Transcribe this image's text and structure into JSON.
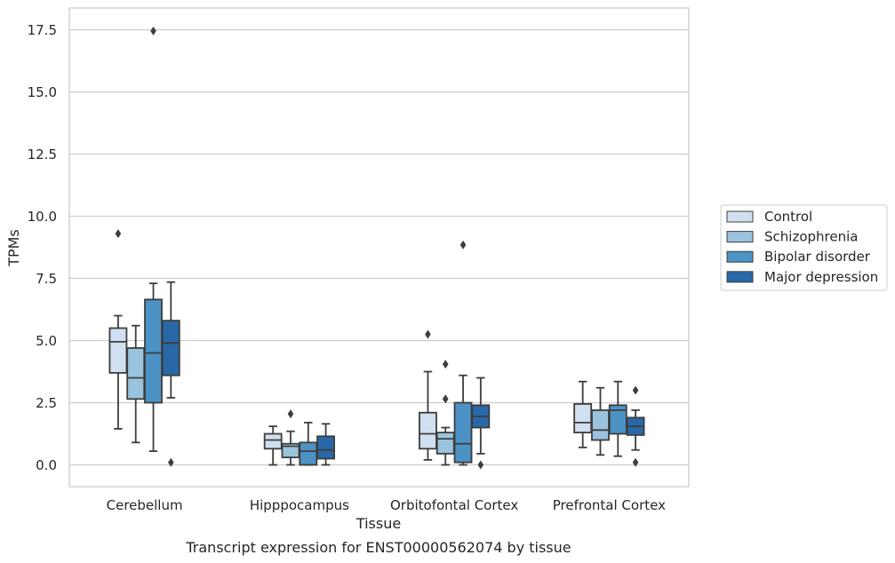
{
  "chart_data": {
    "type": "box",
    "title": "",
    "caption": "Transcript expression for ENST00000562074 by tissue",
    "xlabel": "Tissue",
    "ylabel": "TPMs",
    "ylim": [
      -0.85,
      18.4
    ],
    "yticks": [
      "0.0",
      "2.5",
      "5.0",
      "7.5",
      "10.0",
      "12.5",
      "15.0",
      "17.5"
    ],
    "categories": [
      "Cerebellum",
      "Hipppocampus",
      "Orbitofontal Cortex",
      "Prefrontal Cortex"
    ],
    "grid": "horizontal",
    "legend_position": "right",
    "series": [
      {
        "name": "Control",
        "color": "#d1e0f0",
        "boxes": [
          {
            "whislo": 1.45,
            "q1": 3.7,
            "med": 4.95,
            "q3": 5.5,
            "whishi": 6.0,
            "fliers": [
              9.3
            ]
          },
          {
            "whislo": 0.0,
            "q1": 0.65,
            "med": 1.0,
            "q3": 1.25,
            "whishi": 1.55,
            "fliers": []
          },
          {
            "whislo": 0.2,
            "q1": 0.65,
            "med": 1.25,
            "q3": 2.1,
            "whishi": 3.75,
            "fliers": [
              5.25
            ]
          },
          {
            "whislo": 0.7,
            "q1": 1.3,
            "med": 1.7,
            "q3": 2.45,
            "whishi": 3.35,
            "fliers": []
          }
        ]
      },
      {
        "name": "Schizophrenia",
        "color": "#9cc3de",
        "boxes": [
          {
            "whislo": 0.9,
            "q1": 2.65,
            "med": 3.5,
            "q3": 4.7,
            "whishi": 5.6,
            "fliers": []
          },
          {
            "whislo": 0.0,
            "q1": 0.3,
            "med": 0.75,
            "q3": 0.85,
            "whishi": 1.35,
            "fliers": [
              2.05
            ]
          },
          {
            "whislo": 0.0,
            "q1": 0.45,
            "med": 1.05,
            "q3": 1.3,
            "whishi": 1.5,
            "fliers": [
              4.05,
              2.65
            ]
          },
          {
            "whislo": 0.4,
            "q1": 1.0,
            "med": 1.4,
            "q3": 2.2,
            "whishi": 3.1,
            "fliers": []
          }
        ]
      },
      {
        "name": "Bipolar disorder",
        "color": "#4d92c4",
        "boxes": [
          {
            "whislo": 0.55,
            "q1": 2.5,
            "med": 4.5,
            "q3": 6.65,
            "whishi": 7.3,
            "fliers": [
              17.45
            ]
          },
          {
            "whislo": 0.0,
            "q1": 0.0,
            "med": 0.55,
            "q3": 0.9,
            "whishi": 1.7,
            "fliers": []
          },
          {
            "whislo": 0.0,
            "q1": 0.1,
            "med": 0.85,
            "q3": 2.5,
            "whishi": 3.6,
            "fliers": [
              8.85
            ]
          },
          {
            "whislo": 0.35,
            "q1": 1.25,
            "med": 2.2,
            "q3": 2.4,
            "whishi": 3.35,
            "fliers": []
          }
        ]
      },
      {
        "name": "Major depression",
        "color": "#2868a8",
        "boxes": [
          {
            "whislo": 2.7,
            "q1": 3.6,
            "med": 4.9,
            "q3": 5.8,
            "whishi": 7.35,
            "fliers": [
              0.1
            ]
          },
          {
            "whislo": 0.0,
            "q1": 0.25,
            "med": 0.6,
            "q3": 1.15,
            "whishi": 1.65,
            "fliers": []
          },
          {
            "whislo": 0.45,
            "q1": 1.5,
            "med": 1.95,
            "q3": 2.4,
            "whishi": 3.5,
            "fliers": [
              0.0
            ]
          },
          {
            "whislo": 0.6,
            "q1": 1.2,
            "med": 1.55,
            "q3": 1.9,
            "whishi": 2.2,
            "fliers": [
              3.0,
              0.1
            ]
          }
        ]
      }
    ]
  }
}
